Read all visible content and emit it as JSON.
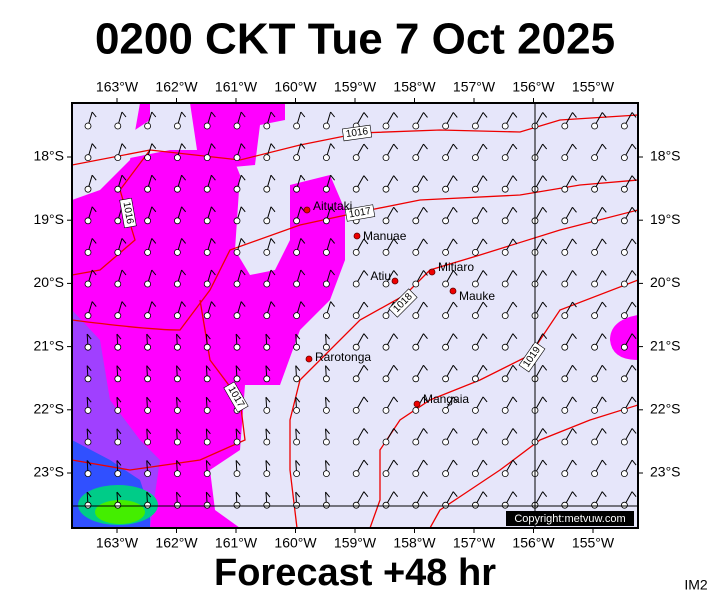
{
  "header": {
    "title": "0200 CKT Tue 7 Oct 2025"
  },
  "map": {
    "longitude_labels": [
      "163°W",
      "162°W",
      "161°W",
      "160°W",
      "159°W",
      "158°W",
      "157°W",
      "156°W",
      "155°W"
    ],
    "latitude_labels": [
      "18°S",
      "19°S",
      "20°S",
      "21°S",
      "22°S",
      "23°S"
    ],
    "places": [
      "Aitutaki",
      "Manuae",
      "Atiu",
      "Mitiaro",
      "Mauke",
      "Rarotonga",
      "Mangaia"
    ],
    "isobar_labels": [
      "1016",
      "1016",
      "1017",
      "1018",
      "1019",
      "1017"
    ],
    "copyright": "Copyright:metvuw.com"
  },
  "footer": {
    "title": "Forecast +48 hr",
    "image_code": "IM2"
  }
}
